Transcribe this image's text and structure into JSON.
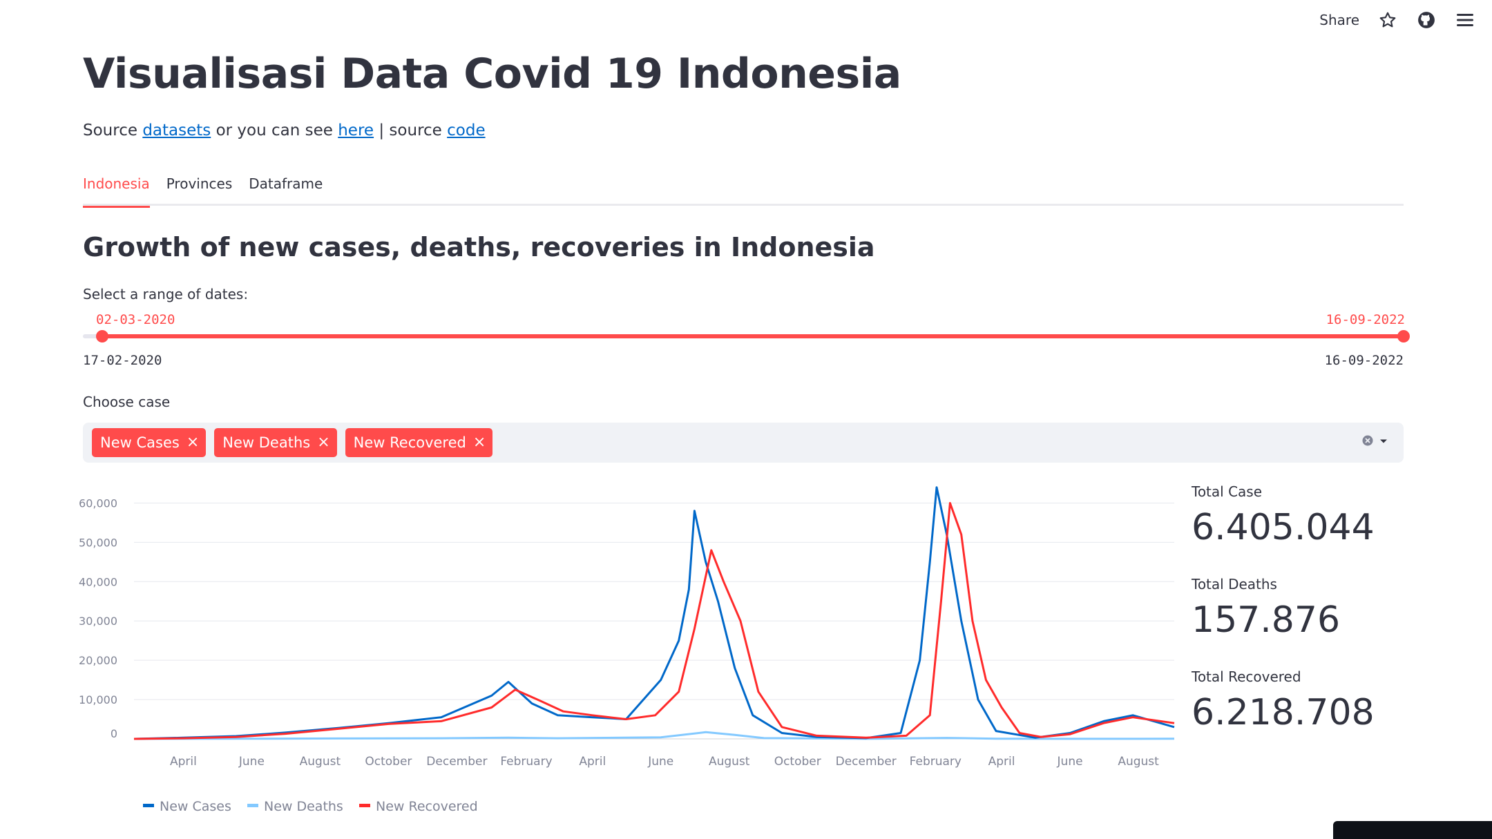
{
  "topbar": {
    "share_label": "Share",
    "star_icon": "star-icon",
    "github_icon": "github-icon",
    "menu_icon": "hamburger-menu-icon"
  },
  "page": {
    "title": "Visualisasi Data Covid 19 Indonesia",
    "source": {
      "prefix": "Source ",
      "link1": "datasets",
      "mid1": " or you can see ",
      "link2": "here",
      "mid2": " | source ",
      "link3": "code"
    }
  },
  "tabs": [
    {
      "label": "Indonesia",
      "active": true
    },
    {
      "label": "Provinces",
      "active": false
    },
    {
      "label": "Dataframe",
      "active": false
    }
  ],
  "section": {
    "title": "Growth of new cases, deaths, recoveries in Indonesia"
  },
  "slider": {
    "label": "Select a range of dates:",
    "selected_start": "02-03-2020",
    "selected_end": "16-09-2022",
    "min": "17-02-2020",
    "max": "16-09-2022"
  },
  "multiselect": {
    "label": "Choose case",
    "chips": [
      "New Cases",
      "New Deaths",
      "New Recovered"
    ],
    "remove_icon": "close-icon",
    "clear_icon": "clear-icon",
    "dropdown_icon": "chevron-down-icon"
  },
  "metrics": [
    {
      "label": "Total Case",
      "value": "6.405.044"
    },
    {
      "label": "Total Deaths",
      "value": "157.876"
    },
    {
      "label": "Total Recovered",
      "value": "6.218.708"
    }
  ],
  "chart_data": {
    "type": "line",
    "y_ticks": [
      "0",
      "10,000",
      "20,000",
      "30,000",
      "40,000",
      "50,000",
      "60,000"
    ],
    "ylim": [
      0,
      65000
    ],
    "x_ticks": [
      "April",
      "June",
      "August",
      "October",
      "December",
      "February",
      "April",
      "June",
      "August",
      "October",
      "December",
      "February",
      "April",
      "June",
      "August"
    ],
    "xlim": [
      "2020-03-02",
      "2022-09-16"
    ],
    "legend_position": "bottom-left",
    "series": [
      {
        "name": "New Cases",
        "color": "#0068c9",
        "points": [
          [
            "2020-03-02",
            0
          ],
          [
            "2020-04-15",
            300
          ],
          [
            "2020-06-01",
            700
          ],
          [
            "2020-07-15",
            1600
          ],
          [
            "2020-09-01",
            2800
          ],
          [
            "2020-10-15",
            4000
          ],
          [
            "2020-12-01",
            5500
          ],
          [
            "2021-01-15",
            11000
          ],
          [
            "2021-01-30",
            14500
          ],
          [
            "2021-02-20",
            9000
          ],
          [
            "2021-03-15",
            6000
          ],
          [
            "2021-04-15",
            5500
          ],
          [
            "2021-05-15",
            5000
          ],
          [
            "2021-06-15",
            15000
          ],
          [
            "2021-07-01",
            25000
          ],
          [
            "2021-07-10",
            38000
          ],
          [
            "2021-07-15",
            58000
          ],
          [
            "2021-07-25",
            45000
          ],
          [
            "2021-08-05",
            35000
          ],
          [
            "2021-08-20",
            18000
          ],
          [
            "2021-09-05",
            6000
          ],
          [
            "2021-10-01",
            1500
          ],
          [
            "2021-11-01",
            500
          ],
          [
            "2021-12-15",
            200
          ],
          [
            "2022-01-15",
            1500
          ],
          [
            "2022-02-01",
            20000
          ],
          [
            "2022-02-10",
            45000
          ],
          [
            "2022-02-16",
            64000
          ],
          [
            "2022-02-25",
            52000
          ],
          [
            "2022-03-10",
            30000
          ],
          [
            "2022-03-25",
            10000
          ],
          [
            "2022-04-10",
            2000
          ],
          [
            "2022-05-15",
            300
          ],
          [
            "2022-06-15",
            1500
          ],
          [
            "2022-07-15",
            4500
          ],
          [
            "2022-08-10",
            6000
          ],
          [
            "2022-09-16",
            3000
          ]
        ]
      },
      {
        "name": "New Deaths",
        "color": "#83c9ff",
        "points": [
          [
            "2020-03-02",
            0
          ],
          [
            "2020-06-01",
            40
          ],
          [
            "2020-09-01",
            100
          ],
          [
            "2020-12-01",
            150
          ],
          [
            "2021-01-30",
            300
          ],
          [
            "2021-03-15",
            150
          ],
          [
            "2021-06-15",
            400
          ],
          [
            "2021-07-25",
            1700
          ],
          [
            "2021-08-20",
            1000
          ],
          [
            "2021-09-15",
            200
          ],
          [
            "2021-12-15",
            10
          ],
          [
            "2022-02-25",
            250
          ],
          [
            "2022-04-10",
            50
          ],
          [
            "2022-06-15",
            10
          ],
          [
            "2022-09-16",
            30
          ]
        ]
      },
      {
        "name": "New Recovered",
        "color": "#ff2b2b",
        "points": [
          [
            "2020-03-02",
            0
          ],
          [
            "2020-04-15",
            150
          ],
          [
            "2020-06-01",
            500
          ],
          [
            "2020-07-15",
            1300
          ],
          [
            "2020-09-01",
            2600
          ],
          [
            "2020-10-15",
            3800
          ],
          [
            "2020-12-01",
            4500
          ],
          [
            "2021-01-15",
            8000
          ],
          [
            "2021-02-05",
            12500
          ],
          [
            "2021-02-25",
            10000
          ],
          [
            "2021-03-20",
            7000
          ],
          [
            "2021-04-15",
            6000
          ],
          [
            "2021-05-15",
            5000
          ],
          [
            "2021-06-10",
            6000
          ],
          [
            "2021-07-01",
            12000
          ],
          [
            "2021-07-15",
            28000
          ],
          [
            "2021-07-30",
            48000
          ],
          [
            "2021-08-10",
            40000
          ],
          [
            "2021-08-25",
            30000
          ],
          [
            "2021-09-10",
            12000
          ],
          [
            "2021-10-01",
            3000
          ],
          [
            "2021-11-01",
            800
          ],
          [
            "2021-12-15",
            300
          ],
          [
            "2022-01-20",
            800
          ],
          [
            "2022-02-10",
            6000
          ],
          [
            "2022-02-20",
            35000
          ],
          [
            "2022-02-28",
            60000
          ],
          [
            "2022-03-10",
            52000
          ],
          [
            "2022-03-20",
            30000
          ],
          [
            "2022-04-01",
            15000
          ],
          [
            "2022-04-15",
            8000
          ],
          [
            "2022-05-01",
            1500
          ],
          [
            "2022-05-20",
            500
          ],
          [
            "2022-06-15",
            1200
          ],
          [
            "2022-07-15",
            4000
          ],
          [
            "2022-08-10",
            5500
          ],
          [
            "2022-09-16",
            4000
          ]
        ]
      }
    ]
  }
}
